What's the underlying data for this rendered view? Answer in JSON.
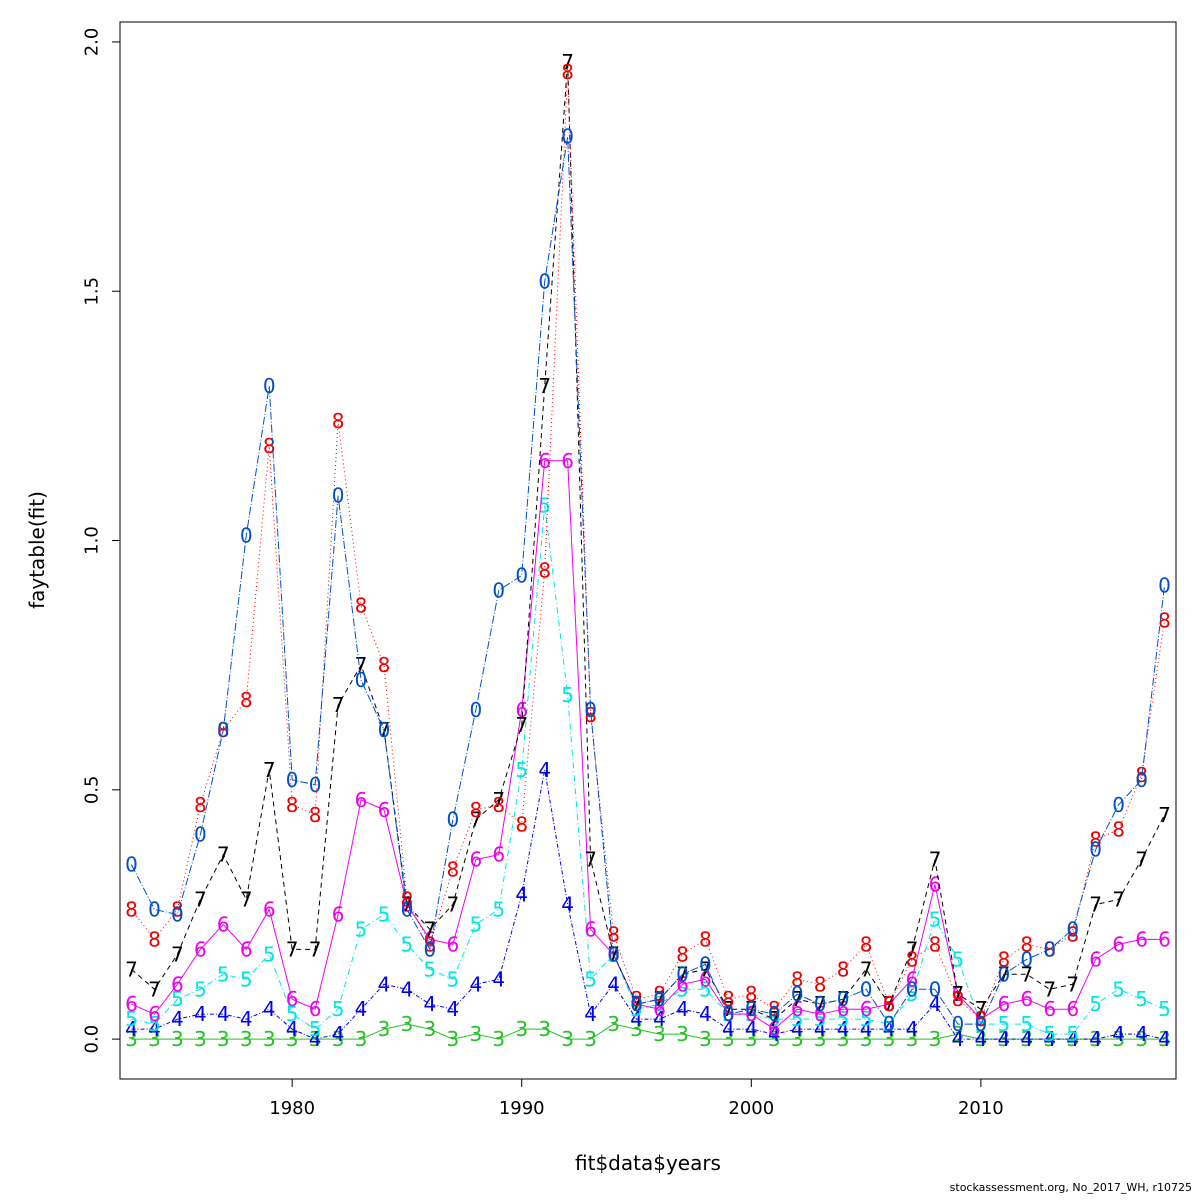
{
  "credit": "stockassessment.org, No_2017_WH, r10725",
  "chart_data": {
    "type": "line",
    "title": "",
    "xlabel": "fit$data$years",
    "ylabel": "faytable(fit)",
    "xlim": [
      1972.5,
      2018.5
    ],
    "ylim": [
      -0.08,
      2.04
    ],
    "xticks": [
      1980,
      1990,
      2000,
      2010
    ],
    "yticks": [
      0.0,
      0.5,
      1.0,
      1.5,
      2.0
    ],
    "ytick_labels": [
      "0.0",
      "0.5",
      "1.0",
      "1.5",
      "2.0"
    ],
    "grid": false,
    "x": [
      1973,
      1974,
      1975,
      1976,
      1977,
      1978,
      1979,
      1980,
      1981,
      1982,
      1983,
      1984,
      1985,
      1986,
      1987,
      1988,
      1989,
      1990,
      1991,
      1992,
      1993,
      1994,
      1995,
      1996,
      1997,
      1998,
      1999,
      2000,
      2001,
      2002,
      2003,
      2004,
      2005,
      2006,
      2007,
      2008,
      2009,
      2010,
      2011,
      2012,
      2013,
      2014,
      2015,
      2016,
      2017,
      2018
    ],
    "series": [
      {
        "symbol": "3",
        "color": "#22c322",
        "dash": "solid",
        "values": [
          0.0,
          0.0,
          0.0,
          0.0,
          0.0,
          0.0,
          0.0,
          0.0,
          0.0,
          0.0,
          0.0,
          0.02,
          0.03,
          0.02,
          0.0,
          0.01,
          0.0,
          0.02,
          0.02,
          0.0,
          0.0,
          0.03,
          0.02,
          0.01,
          0.01,
          0.0,
          0.0,
          0.0,
          0.0,
          0.0,
          0.0,
          0.0,
          0.0,
          0.0,
          0.0,
          0.0,
          0.01,
          0.0,
          0.0,
          0.0,
          0.0,
          0.0,
          0.0,
          0.0,
          0.0,
          0.0
        ]
      },
      {
        "symbol": "4",
        "color": "#0000ee",
        "dash": "4,2,1,2",
        "values": [
          0.02,
          0.02,
          0.04,
          0.05,
          0.05,
          0.04,
          0.06,
          0.02,
          0.0,
          0.01,
          0.06,
          0.11,
          0.1,
          0.07,
          0.06,
          0.11,
          0.12,
          0.29,
          0.54,
          0.27,
          0.05,
          0.11,
          0.04,
          0.04,
          0.06,
          0.05,
          0.02,
          0.02,
          0.01,
          0.02,
          0.02,
          0.02,
          0.02,
          0.02,
          0.02,
          0.07,
          0.0,
          0.0,
          0.0,
          0.0,
          0.0,
          0.0,
          0.0,
          0.01,
          0.01,
          0.0
        ]
      },
      {
        "symbol": "5",
        "color": "#00e6e6",
        "dash": "6,3,1,3",
        "values": [
          0.04,
          0.03,
          0.08,
          0.1,
          0.13,
          0.12,
          0.17,
          0.05,
          0.02,
          0.06,
          0.22,
          0.25,
          0.19,
          0.14,
          0.12,
          0.23,
          0.26,
          0.54,
          1.07,
          0.69,
          0.12,
          0.17,
          0.06,
          0.07,
          0.1,
          0.1,
          0.05,
          0.05,
          0.04,
          0.04,
          0.04,
          0.04,
          0.04,
          0.03,
          0.09,
          0.24,
          0.16,
          0.03,
          0.03,
          0.03,
          0.01,
          0.01,
          0.07,
          0.1,
          0.08,
          0.06
        ]
      },
      {
        "symbol": "6",
        "color": "#ee00ee",
        "dash": "solid",
        "values": [
          0.07,
          0.05,
          0.11,
          0.18,
          0.23,
          0.18,
          0.26,
          0.08,
          0.06,
          0.25,
          0.48,
          0.46,
          0.27,
          0.2,
          0.19,
          0.36,
          0.37,
          0.66,
          1.16,
          1.16,
          0.22,
          0.17,
          0.07,
          0.06,
          0.11,
          0.12,
          0.05,
          0.05,
          0.02,
          0.06,
          0.05,
          0.06,
          0.06,
          0.07,
          0.12,
          0.31,
          0.09,
          0.04,
          0.07,
          0.08,
          0.06,
          0.06,
          0.16,
          0.19,
          0.2,
          0.2
        ]
      },
      {
        "symbol": "7",
        "color": "#000000",
        "dash": "5,4",
        "values": [
          0.14,
          0.1,
          0.17,
          0.28,
          0.37,
          0.28,
          0.54,
          0.18,
          0.18,
          0.67,
          0.75,
          0.62,
          0.27,
          0.22,
          0.27,
          0.44,
          0.48,
          0.63,
          1.31,
          1.96,
          0.36,
          0.17,
          0.07,
          0.08,
          0.13,
          0.14,
          0.06,
          0.06,
          0.04,
          0.08,
          0.07,
          0.08,
          0.14,
          0.07,
          0.18,
          0.36,
          0.09,
          0.06,
          0.13,
          0.13,
          0.1,
          0.11,
          0.27,
          0.28,
          0.36,
          0.45
        ]
      },
      {
        "symbol": "8",
        "color": "#ee0000",
        "dash": "1,3",
        "values": [
          0.26,
          0.2,
          0.26,
          0.47,
          0.62,
          0.68,
          1.19,
          0.47,
          0.45,
          1.24,
          0.87,
          0.75,
          0.28,
          0.19,
          0.34,
          0.46,
          0.47,
          0.43,
          0.94,
          1.94,
          0.65,
          0.21,
          0.08,
          0.09,
          0.17,
          0.2,
          0.08,
          0.09,
          0.06,
          0.12,
          0.11,
          0.14,
          0.19,
          0.07,
          0.16,
          0.19,
          0.08,
          0.04,
          0.16,
          0.19,
          0.18,
          0.21,
          0.4,
          0.42,
          0.53,
          0.84
        ]
      },
      {
        "symbol": "0",
        "color": "#0050c8",
        "dash": "8,2,1,2",
        "values": [
          0.35,
          0.26,
          0.25,
          0.41,
          0.62,
          1.01,
          1.31,
          0.52,
          0.51,
          1.09,
          0.72,
          0.62,
          0.26,
          0.18,
          0.44,
          0.66,
          0.9,
          0.93,
          1.52,
          1.81,
          0.66,
          0.17,
          0.07,
          0.08,
          0.13,
          0.15,
          0.05,
          0.06,
          0.05,
          0.09,
          0.07,
          0.08,
          0.1,
          0.03,
          0.1,
          0.1,
          0.03,
          0.03,
          0.13,
          0.16,
          0.18,
          0.22,
          0.38,
          0.47,
          0.52,
          0.91
        ]
      }
    ]
  }
}
